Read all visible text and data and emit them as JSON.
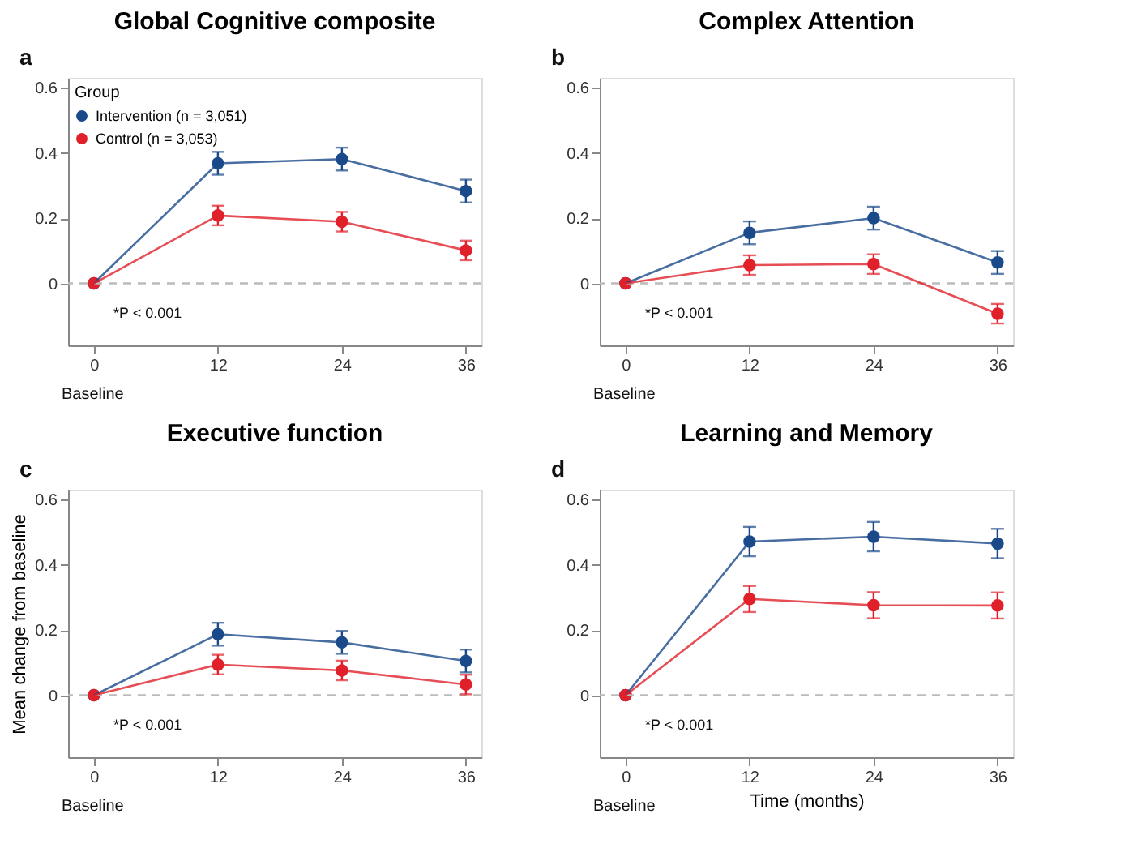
{
  "chart_data": [
    {
      "type": "line",
      "title": "Global Cognitive composite",
      "x": [
        0,
        12,
        24,
        36
      ],
      "xlim": [
        -2.5,
        37.5
      ],
      "xticks": [
        0,
        12,
        24,
        36
      ],
      "ylim": [
        -0.19,
        0.63
      ],
      "yticks": [
        0,
        0.2,
        0.4,
        0.6
      ],
      "legend": "top left",
      "legend_title": "Group",
      "marker": "circle",
      "grid": false,
      "annotations": [
        "a",
        "*P < 0.001",
        "Baseline"
      ],
      "ref_lines": [
        {
          "axis": "y",
          "value": 0,
          "color": "#bbbbbb",
          "line_style": "dashed"
        }
      ],
      "series": [
        {
          "name": "Intervention (n = 3,051)",
          "color": "#1a4a8a",
          "values": [
            0,
            0.368,
            0.381,
            0.283
          ],
          "errors": [
            null,
            0.035,
            0.035,
            0.035
          ]
        },
        {
          "name": "Control (n = 3,053)",
          "color": "#e0202a",
          "values": [
            0,
            0.208,
            0.189,
            0.101
          ],
          "errors": [
            null,
            0.03,
            0.03,
            0.03
          ]
        }
      ]
    },
    {
      "type": "line",
      "title": "Complex Attention",
      "x": [
        0,
        12,
        24,
        36
      ],
      "xlim": [
        -2.5,
        37.5
      ],
      "xticks": [
        0,
        12,
        24,
        36
      ],
      "ylim": [
        -0.19,
        0.63
      ],
      "yticks": [
        0,
        0.2,
        0.4,
        0.6
      ],
      "marker": "circle",
      "grid": false,
      "annotations": [
        "b",
        "*P < 0.001",
        "Baseline"
      ],
      "ref_lines": [
        {
          "axis": "y",
          "value": 0,
          "color": "#bbbbbb",
          "line_style": "dashed"
        }
      ],
      "series": [
        {
          "color": "#1a4a8a",
          "values": [
            0,
            0.155,
            0.2,
            0.064
          ],
          "errors": [
            null,
            0.035,
            0.035,
            0.035
          ]
        },
        {
          "color": "#e0202a",
          "values": [
            0,
            0.056,
            0.059,
            -0.093
          ],
          "errors": [
            null,
            0.03,
            0.03,
            0.03
          ]
        }
      ]
    },
    {
      "type": "line",
      "title": "Executive function",
      "ylabel": "Mean change from baseline",
      "x": [
        0,
        12,
        24,
        36
      ],
      "xlim": [
        -2.5,
        37.5
      ],
      "xticks": [
        0,
        12,
        24,
        36
      ],
      "ylim": [
        -0.19,
        0.63
      ],
      "yticks": [
        0,
        0.2,
        0.4,
        0.6
      ],
      "marker": "circle",
      "grid": false,
      "annotations": [
        "c",
        "*P < 0.001",
        "Baseline"
      ],
      "ref_lines": [
        {
          "axis": "y",
          "value": 0,
          "color": "#bbbbbb",
          "line_style": "dashed"
        }
      ],
      "series": [
        {
          "color": "#1a4a8a",
          "values": [
            0,
            0.187,
            0.162,
            0.105
          ],
          "errors": [
            null,
            0.035,
            0.035,
            0.035
          ]
        },
        {
          "color": "#e0202a",
          "values": [
            0,
            0.094,
            0.076,
            0.033
          ],
          "errors": [
            null,
            0.03,
            0.03,
            0.03
          ]
        }
      ]
    },
    {
      "type": "line",
      "title": "Learning and Memory",
      "xlabel": "Time (months)",
      "x": [
        0,
        12,
        24,
        36
      ],
      "xlim": [
        -2.5,
        37.5
      ],
      "xticks": [
        0,
        12,
        24,
        36
      ],
      "ylim": [
        -0.19,
        0.63
      ],
      "yticks": [
        0,
        0.2,
        0.4,
        0.6
      ],
      "marker": "circle",
      "grid": false,
      "annotations": [
        "d",
        "*P < 0.001",
        "Baseline"
      ],
      "ref_lines": [
        {
          "axis": "y",
          "value": 0,
          "color": "#bbbbbb",
          "line_style": "dashed"
        }
      ],
      "series": [
        {
          "color": "#1a4a8a",
          "values": [
            0,
            0.471,
            0.486,
            0.465
          ],
          "errors": [
            null,
            0.045,
            0.045,
            0.045
          ]
        },
        {
          "color": "#e0202a",
          "values": [
            0,
            0.295,
            0.276,
            0.275
          ],
          "errors": [
            null,
            0.04,
            0.04,
            0.04
          ]
        }
      ]
    }
  ]
}
